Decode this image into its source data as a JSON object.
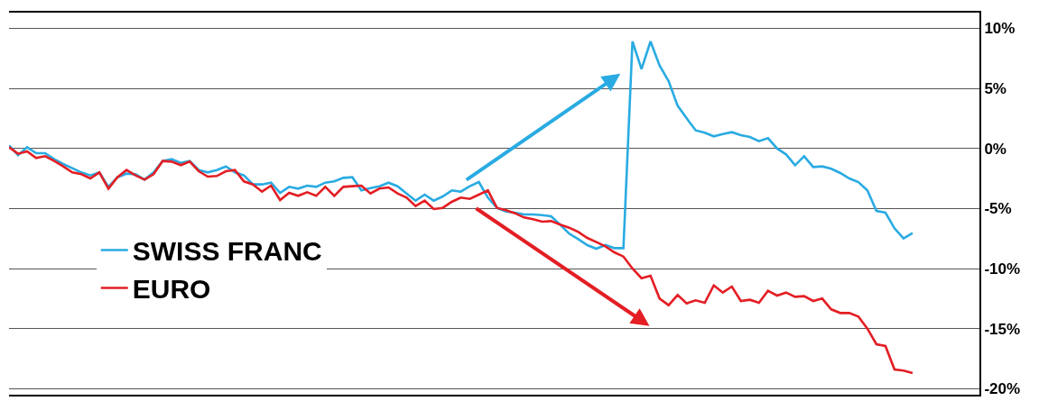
{
  "chart_data": {
    "type": "line",
    "categories": [
      null,
      null,
      null,
      null,
      null,
      null,
      null,
      null,
      null,
      null,
      null,
      null,
      null,
      null,
      null,
      null,
      null,
      null,
      null,
      null,
      null,
      null,
      null,
      null,
      null,
      null,
      null,
      null,
      null,
      null,
      null,
      null,
      null,
      null,
      null,
      null,
      null,
      null,
      null,
      null,
      null,
      null,
      null,
      null,
      null,
      null,
      null,
      null,
      null,
      null,
      null,
      null,
      null,
      null,
      null,
      null,
      null,
      null,
      null,
      null,
      null,
      null,
      null,
      null,
      null,
      null,
      null,
      null,
      null,
      null,
      null,
      null,
      null,
      null,
      null,
      null,
      null,
      null,
      null,
      null,
      null,
      null,
      null,
      null,
      null,
      null,
      null,
      null,
      null,
      null,
      null,
      null,
      null,
      null,
      null,
      null,
      null,
      null,
      null,
      null,
      null
    ],
    "series": [
      {
        "name": "SWISS FRANC",
        "color": "#29abe2",
        "values": [
          0.24,
          -0.56,
          0.1,
          -0.4,
          -0.4,
          -0.9,
          -1.3,
          -1.65,
          -2.0,
          -2.25,
          -2.0,
          -3.2,
          -2.4,
          -2.1,
          -2.15,
          -2.6,
          -2.0,
          -1.05,
          -0.9,
          -1.2,
          -1.05,
          -1.8,
          -2.0,
          -1.8,
          -1.5,
          -2.0,
          -2.25,
          -3.0,
          -3.0,
          -2.85,
          -3.7,
          -3.2,
          -3.35,
          -3.1,
          -3.2,
          -2.85,
          -2.75,
          -2.45,
          -2.4,
          -3.5,
          -3.3,
          -3.15,
          -2.85,
          -3.15,
          -3.75,
          -4.35,
          -3.85,
          -4.35,
          -4.0,
          -3.5,
          -3.6,
          -3.15,
          -2.8,
          -4.1,
          -4.95,
          -5.25,
          -5.35,
          -5.5,
          -5.5,
          -5.55,
          -5.65,
          -6.35,
          -7.1,
          -7.55,
          -8.05,
          -8.35,
          -8.05,
          -8.3,
          -8.3,
          8.9,
          6.6,
          8.9,
          6.9,
          5.6,
          3.55,
          2.5,
          1.5,
          1.3,
          1.0,
          1.2,
          1.35,
          1.1,
          0.95,
          0.6,
          0.85,
          0.0,
          -0.5,
          -1.4,
          -0.65,
          -1.55,
          -1.5,
          -1.7,
          -2.05,
          -2.5,
          -2.8,
          -3.5,
          -5.2,
          -5.35,
          -6.65,
          -7.5,
          -7.05
        ]
      },
      {
        "name": "EURO",
        "color": "#e31e24",
        "values": [
          0.1,
          -0.45,
          -0.25,
          -0.8,
          -0.65,
          -1.05,
          -1.5,
          -2.0,
          -2.15,
          -2.5,
          -2.0,
          -3.35,
          -2.4,
          -1.8,
          -2.25,
          -2.6,
          -2.15,
          -1.05,
          -1.1,
          -1.4,
          -1.1,
          -1.9,
          -2.35,
          -2.3,
          -1.9,
          -1.8,
          -2.75,
          -3.0,
          -3.6,
          -3.1,
          -4.3,
          -3.7,
          -3.95,
          -3.65,
          -3.95,
          -3.2,
          -3.95,
          -3.2,
          -3.15,
          -3.1,
          -3.75,
          -3.35,
          -3.25,
          -3.75,
          -4.1,
          -4.8,
          -4.35,
          -5.05,
          -4.95,
          -4.45,
          -4.1,
          -4.2,
          -3.85,
          -3.5,
          -4.95,
          -5.15,
          -5.4,
          -5.75,
          -5.9,
          -6.1,
          -6.05,
          -6.35,
          -6.6,
          -6.95,
          -7.45,
          -7.8,
          -8.15,
          -8.65,
          -9.0,
          -10.0,
          -10.8,
          -10.6,
          -12.5,
          -13.05,
          -12.2,
          -12.9,
          -12.65,
          -12.85,
          -11.4,
          -12.0,
          -11.5,
          -12.7,
          -12.6,
          -12.85,
          -11.85,
          -12.25,
          -12.0,
          -12.35,
          -12.3,
          -12.7,
          -12.5,
          -13.4,
          -13.7,
          -13.7,
          -14.0,
          -15.0,
          -16.3,
          -16.45,
          -18.4,
          -18.5,
          -18.7
        ]
      }
    ],
    "ylim": [
      -20.5,
      11.3
    ],
    "yticks": [
      {
        "value": 10,
        "label": "10%"
      },
      {
        "value": 5,
        "label": "5%"
      },
      {
        "value": 0,
        "label": "0%"
      },
      {
        "value": -5,
        "label": "-5%"
      },
      {
        "value": -10,
        "label": "-10%"
      },
      {
        "value": -15,
        "label": "-15%"
      },
      {
        "value": -20,
        "label": "-20%"
      }
    ],
    "grid": "y",
    "legend": "left",
    "tick_labels": "y",
    "marker": "none",
    "line_style": "solid"
  }
}
